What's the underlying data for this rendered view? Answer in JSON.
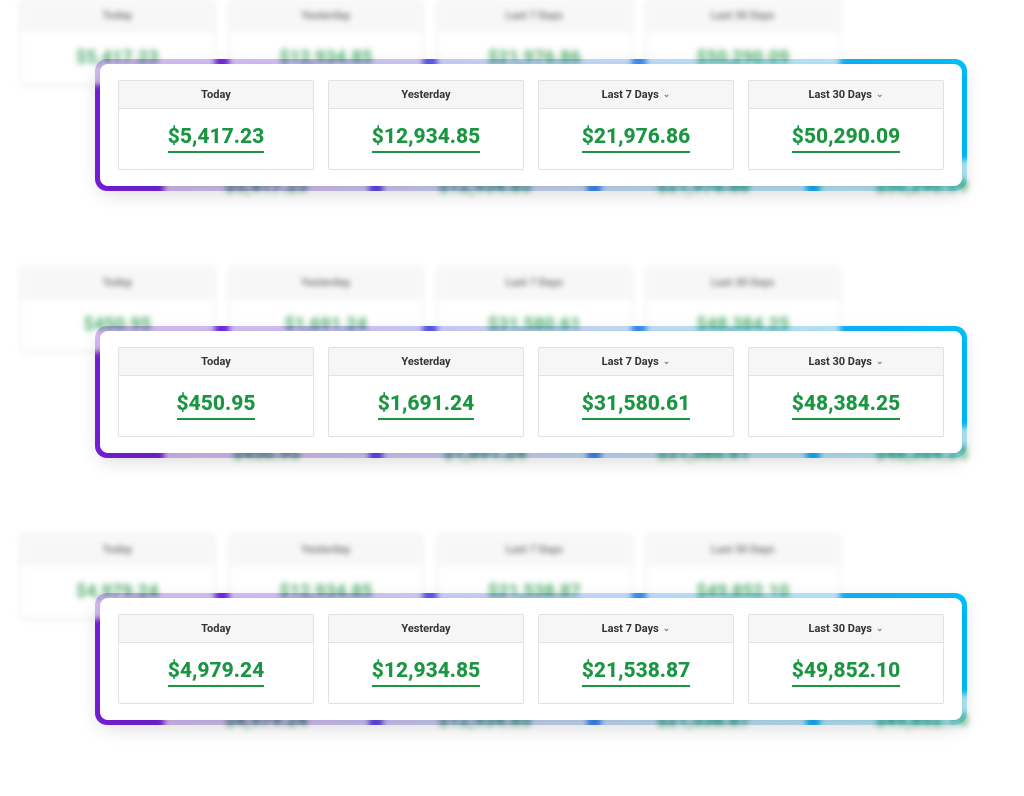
{
  "colors": {
    "value_green": "#1a9641",
    "gradient_start": "#7b1fe0",
    "gradient_end": "#00c3ff",
    "card_border": "#e1e1e1",
    "header_bg": "#f6f6f6"
  },
  "columns": [
    {
      "label": "Today",
      "has_chevron": false
    },
    {
      "label": "Yesterday",
      "has_chevron": false
    },
    {
      "label": "Last 7 Days",
      "has_chevron": true
    },
    {
      "label": "Last 30 Days",
      "has_chevron": true
    }
  ],
  "panels": [
    {
      "values": [
        "$5,417.23",
        "$12,934.85",
        "$21,976.86",
        "$50,290.09"
      ]
    },
    {
      "values": [
        "$450.95",
        "$1,691.24",
        "$31,580.61",
        "$48,384.25"
      ]
    },
    {
      "values": [
        "$4,979.24",
        "$12,934.85",
        "$21,538.87",
        "$49,852.10"
      ]
    }
  ]
}
